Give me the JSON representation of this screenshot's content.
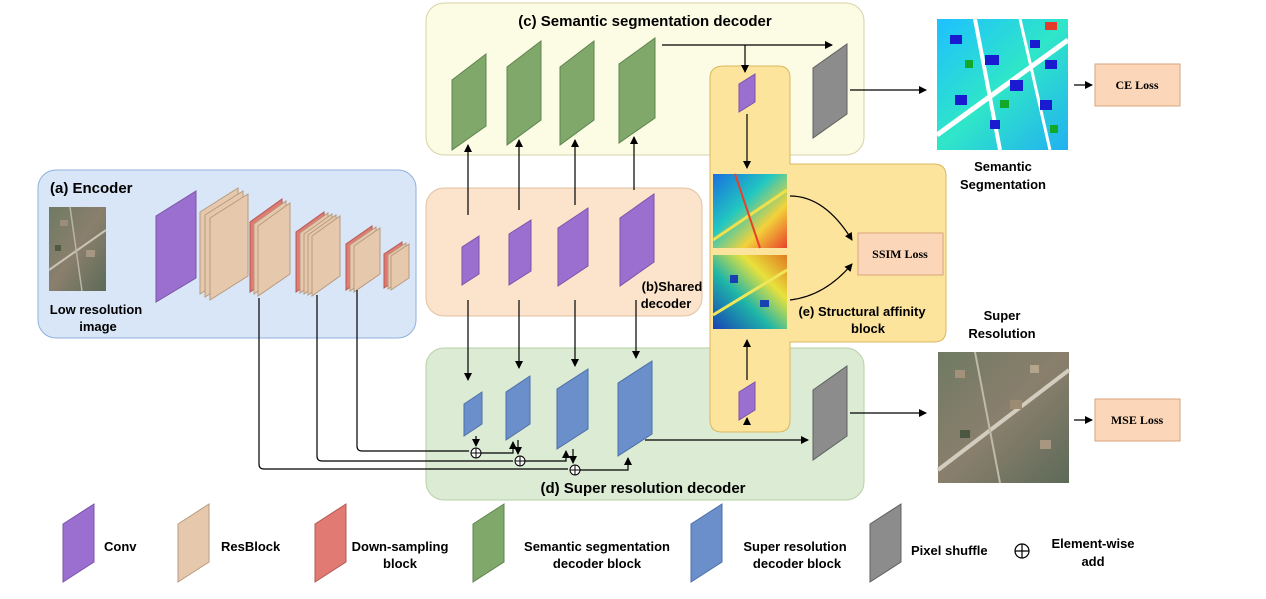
{
  "panels": {
    "encoder": "(a) Encoder",
    "shared_decoder_line1": "(b)Shared",
    "shared_decoder_line2": "decoder",
    "semantic_decoder": "(c) Semantic segmentation decoder",
    "super_resolution_decoder": "(d) Super resolution decoder",
    "structural_affinity_line1": "(e) Structural affinity",
    "structural_affinity_line2": "block"
  },
  "images": {
    "input_line1": "Low resolution",
    "input_line2": "image",
    "segmentation_line1": "Semantic",
    "segmentation_line2": "Segmentation",
    "super_res_line1": "Super",
    "super_res_line2": "Resolution"
  },
  "losses": {
    "ce": "CE Loss",
    "ssim": "SSIM Loss",
    "mse": "MSE Loss"
  },
  "legend": {
    "conv": "Conv",
    "resblock": "ResBlock",
    "downsampling_line1": "Down-sampling",
    "downsampling_line2": "block",
    "semseg_line1": "Semantic segmentation",
    "semseg_line2": "decoder block",
    "superres_line1": "Super resolution",
    "superres_line2": "decoder block",
    "pixelshuffle": "Pixel shuffle",
    "elementwise_line1": "Element-wise",
    "elementwise_line2": "add"
  },
  "colors": {
    "conv": "#9b6fcf",
    "resblock": "#e6c9ad",
    "downsampling": "#e07a72",
    "semseg": "#7fa86a",
    "superres": "#6a8fca",
    "pixelshuffle": "#8c8c8c",
    "encoder_bg": "#d9e6f7",
    "shared_bg": "#fbe3cc",
    "semantic_bg": "#fcfbe3",
    "superres_bg": "#dcebd3",
    "affinity_bg": "#fde49c",
    "loss_bg": "#fbd6b8"
  }
}
